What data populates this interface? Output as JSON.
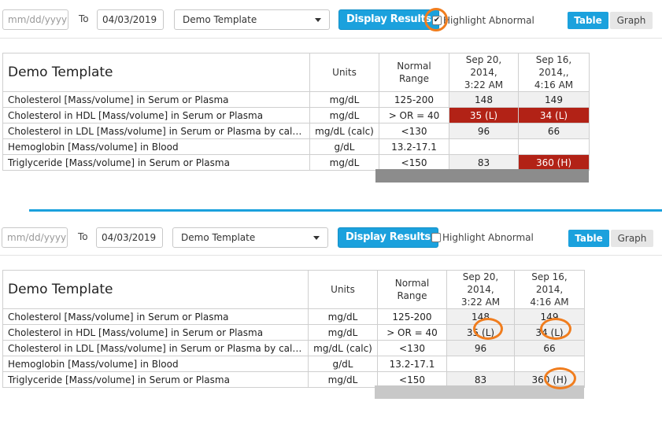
{
  "panels": [
    {
      "date_from_placeholder": "mm/dd/yyyy",
      "to_label": "To",
      "date_to_value": "04/03/2019",
      "template_select": "Demo Template",
      "display_button": "Display Results",
      "highlight_label": "Highlight Abnormal",
      "highlight_checked": true,
      "view_tabs": [
        "Table",
        "Graph"
      ],
      "active_view": "Table",
      "table": {
        "title": "Demo Template",
        "units_header": "Units",
        "range_header": [
          "Normal",
          "Range"
        ],
        "date_headers": [
          [
            "Sep 20, 2014,",
            "3:22 AM"
          ],
          [
            "Sep 16, 2014,,",
            "4:16 AM"
          ]
        ],
        "rows": [
          {
            "name": "Cholesterol [Mass/volume] in Serum or Plasma",
            "units": "mg/dL",
            "range": "125-200",
            "values": [
              "148",
              "149"
            ],
            "abnormal": [
              false,
              false
            ]
          },
          {
            "name": "Cholesterol in HDL [Mass/volume] in Serum or Plasma",
            "units": "mg/dL",
            "range": "> OR = 40",
            "values": [
              "35 (L)",
              "34 (L)"
            ],
            "abnormal": [
              true,
              true
            ]
          },
          {
            "name": "Cholesterol in LDL [Mass/volume] in Serum or Plasma by calcu...",
            "units": "mg/dL (calc)",
            "range": "<130",
            "values": [
              "96",
              "66"
            ],
            "abnormal": [
              false,
              false
            ]
          },
          {
            "name": "Hemoglobin [Mass/volume] in Blood",
            "units": "g/dL",
            "range": "13.2-17.1",
            "values": [
              "",
              ""
            ],
            "abnormal": [
              false,
              false
            ]
          },
          {
            "name": "Triglyceride [Mass/volume] in Serum or Plasma",
            "units": "mg/dL",
            "range": "<150",
            "values": [
              "83",
              "360 (H)"
            ],
            "abnormal": [
              false,
              true
            ]
          }
        ]
      }
    },
    {
      "date_from_placeholder": "mm/dd/yyyy",
      "to_label": "To",
      "date_to_value": "04/03/2019",
      "template_select": "Demo Template",
      "display_button": "Display Results",
      "highlight_label": "Highlight Abnormal",
      "highlight_checked": false,
      "view_tabs": [
        "Table",
        "Graph"
      ],
      "active_view": "Table",
      "table": {
        "title": "Demo Template",
        "units_header": "Units",
        "range_header": [
          "Normal",
          "Range"
        ],
        "date_headers": [
          [
            "Sep 20, 2014,",
            "3:22 AM"
          ],
          [
            "Sep 16, 2014,",
            "4:16 AM"
          ]
        ],
        "rows": [
          {
            "name": "Cholesterol [Mass/volume] in Serum or Plasma",
            "units": "mg/dL",
            "range": "125-200",
            "values": [
              "148",
              "149"
            ],
            "abnormal": [
              false,
              false
            ]
          },
          {
            "name": "Cholesterol in HDL [Mass/volume] in Serum or Plasma",
            "units": "mg/dL",
            "range": "> OR = 40",
            "values": [
              "35 (L)",
              "34 (L)"
            ],
            "abnormal": [
              false,
              false
            ]
          },
          {
            "name": "Cholesterol in LDL [Mass/volume] in Serum or Plasma by calcu...",
            "units": "mg/dL (calc)",
            "range": "<130",
            "values": [
              "96",
              "66"
            ],
            "abnormal": [
              false,
              false
            ]
          },
          {
            "name": "Hemoglobin [Mass/volume] in Blood",
            "units": "g/dL",
            "range": "13.2-17.1",
            "values": [
              "",
              ""
            ],
            "abnormal": [
              false,
              false
            ]
          },
          {
            "name": "Triglyceride [Mass/volume] in Serum or Plasma",
            "units": "mg/dL",
            "range": "<150",
            "values": [
              "83",
              "360 (H)"
            ],
            "abnormal": [
              false,
              false
            ]
          }
        ]
      }
    }
  ],
  "colors": {
    "accent": "#1ba1dd",
    "abnormal_fill": "#b22216",
    "annotation_ring": "#f07d1e"
  }
}
